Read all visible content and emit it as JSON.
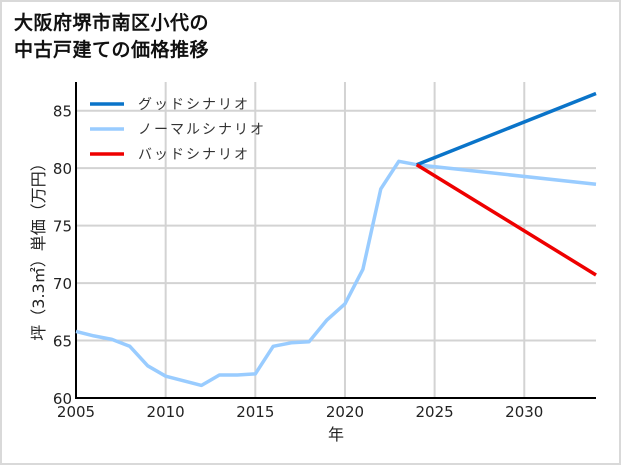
{
  "title": {
    "line1": "大阪府堺市南区小代の",
    "line2": "中古戸建ての価格推移"
  },
  "chart_data": {
    "type": "line",
    "title": "大阪府堺市南区小代の中古戸建ての価格推移",
    "xlabel": "年",
    "ylabel": "坪（3.3㎡）単価（万円）",
    "xlim": [
      2005,
      2034
    ],
    "ylim": [
      60,
      87.5
    ],
    "xticks": [
      2005,
      2010,
      2015,
      2020,
      2025,
      2030
    ],
    "yticks": [
      60,
      65,
      70,
      75,
      80,
      85
    ],
    "grid": true,
    "legend_position": "upper left",
    "series": [
      {
        "name": "グッドシナリオ",
        "color": "#0a74c9",
        "x": [
          2024,
          2034
        ],
        "values": [
          80.3,
          86.5
        ]
      },
      {
        "name": "ノーマルシナリオ",
        "color": "#99ccff",
        "x": [
          2005,
          2006,
          2007,
          2008,
          2009,
          2010,
          2011,
          2012,
          2013,
          2014,
          2015,
          2016,
          2017,
          2018,
          2019,
          2020,
          2021,
          2022,
          2023,
          2024,
          2034
        ],
        "values": [
          65.8,
          65.4,
          65.1,
          64.5,
          62.8,
          61.9,
          61.5,
          61.1,
          62.0,
          62.0,
          62.1,
          64.5,
          64.8,
          64.9,
          66.8,
          68.2,
          71.2,
          78.2,
          80.6,
          80.3,
          78.6
        ]
      },
      {
        "name": "バッドシナリオ",
        "color": "#ee0000",
        "x": [
          2024,
          2034
        ],
        "values": [
          80.3,
          70.7
        ]
      }
    ]
  }
}
